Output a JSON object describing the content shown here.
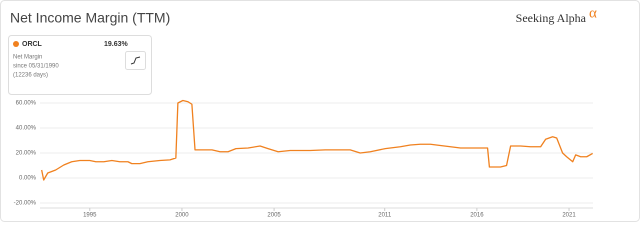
{
  "chart_data": {
    "type": "line",
    "title": "Net Income Margin (TTM)",
    "brand": "Seeking Alpha",
    "brand_mark": "α",
    "legend_box": {
      "value": "19.63%",
      "metric": "Net Margin",
      "since": "since 05/31/1990",
      "days": "(12236 days)"
    },
    "series": [
      {
        "name": "ORCL",
        "color": "#f0811f",
        "x": [
          1992.39,
          1992.5,
          1992.72,
          1993.15,
          1993.59,
          1994.02,
          1994.46,
          1995.0,
          1995.33,
          1995.76,
          1996.2,
          1996.63,
          1997.07,
          1997.28,
          1997.72,
          1998.15,
          1998.8,
          1999.35,
          1999.67,
          1999.78,
          2000.05,
          2000.33,
          2000.54,
          2000.71,
          2001.25,
          2001.63,
          2002.07,
          2002.5,
          2002.93,
          2003.59,
          2004.24,
          2004.67,
          2005.22,
          2005.87,
          2006.96,
          2007.77,
          2008.59,
          2009.13,
          2009.67,
          2010.22,
          2011.03,
          2011.85,
          2012.39,
          2012.93,
          2013.48,
          2014.02,
          2014.57,
          2015.11,
          2015.65,
          2016.2,
          2016.58,
          2016.68,
          2017.28,
          2017.61,
          2017.83,
          2018.37,
          2018.91,
          2019.46,
          2019.73,
          2020.11,
          2020.33,
          2020.65,
          2020.87,
          2021.2,
          2021.36,
          2021.63,
          2021.96,
          2022.28
        ],
        "values": [
          6.4,
          -1.6,
          4,
          6.4,
          10.4,
          13,
          14,
          14,
          13,
          13,
          14,
          13,
          13,
          11.5,
          11.5,
          13,
          14,
          14.5,
          16,
          60,
          62,
          61,
          59,
          22.5,
          22.5,
          22.5,
          21,
          21,
          23.5,
          24,
          25.6,
          23.5,
          21,
          22,
          22,
          22.5,
          22.5,
          22.5,
          20,
          21,
          23.5,
          25,
          26.4,
          27,
          27,
          26,
          25,
          24,
          24,
          24,
          24,
          8.8,
          8.8,
          10,
          25.6,
          25.6,
          25,
          25,
          31,
          33,
          32,
          20,
          17,
          13,
          18.5,
          17,
          17,
          19.63
        ]
      }
    ],
    "xlim": [
      1992.3,
      2022.3
    ],
    "xticks": [
      1995,
      2000,
      2005,
      2011,
      2016,
      2021
    ],
    "ylim": [
      -25,
      66
    ],
    "yticks": [
      {
        "value": -20,
        "label": "-20.00%"
      },
      {
        "value": 0,
        "label": "0.00%"
      },
      {
        "value": 20,
        "label": "20.00%"
      },
      {
        "value": 40,
        "label": "40.00%"
      },
      {
        "value": 60,
        "label": "60.00%"
      }
    ],
    "grid": true
  }
}
